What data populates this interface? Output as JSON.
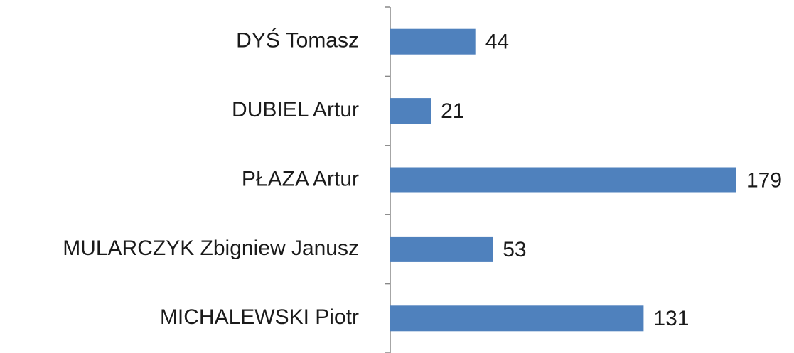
{
  "chart_data": {
    "type": "hbar",
    "categories": [
      "DYŚ Tomasz",
      "DUBIEL Artur",
      "PŁAZA Artur",
      "MULARCZYK Zbigniew Janusz",
      "MICHALEWSKI Piotr"
    ],
    "values": [
      44,
      21,
      179,
      53,
      131
    ],
    "color": "#4f81bd"
  }
}
